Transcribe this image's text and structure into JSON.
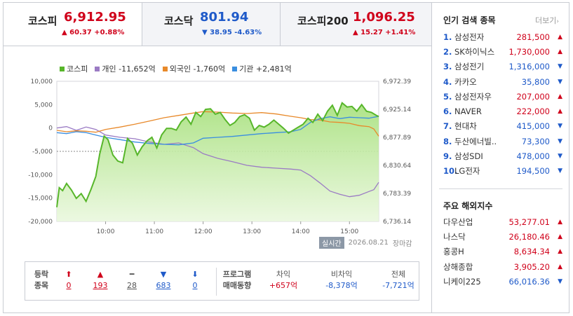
{
  "indices": [
    {
      "name": "코스피",
      "value": "6,912.95",
      "change": "▲ 60.37 +0.88%",
      "dir": "up"
    },
    {
      "name": "코스닥",
      "value": "801.94",
      "change": "▼ 38.95 -4.63%",
      "dir": "dn"
    },
    {
      "name": "코스피200",
      "value": "1,096.25",
      "change": "▲ 15.27 +1.41%",
      "dir": "up"
    }
  ],
  "legend": {
    "kospi": "코스피",
    "individual": "개인 -11,652억",
    "foreign": "외국인 -1,760억",
    "institution": "기관 +2,481억"
  },
  "colors": {
    "up": "#d0021b",
    "down": "#1f5ac9",
    "kospi": "#57b62a",
    "individual": "#9b7bc4",
    "foreign": "#e8892a",
    "institution": "#3a8ee0"
  },
  "chart_data": {
    "type": "line",
    "x_ticks": [
      "10:00",
      "11:00",
      "12:00",
      "13:00",
      "14:00",
      "15:00"
    ],
    "y_left_ticks": [
      "10,000",
      "5,000",
      "0",
      "-5,000",
      "-10,000",
      "-15,000",
      "-20,000"
    ],
    "y_left_range": [
      -20000,
      10000
    ],
    "y_right_ticks": [
      "6,972.39",
      "6,925.14",
      "6,877.89",
      "6,830.64",
      "6,783.39",
      "6,736.14"
    ],
    "y_right_range": [
      6736.14,
      6972.39
    ],
    "reference_line": "-5,000 dashed (previous close)",
    "x_range": [
      9.0,
      15.6
    ],
    "series": [
      {
        "name": "코스피",
        "axis": "right",
        "x": [
          9.0,
          9.05,
          9.12,
          9.2,
          9.3,
          9.4,
          9.5,
          9.6,
          9.7,
          9.8,
          9.88,
          9.97,
          10.05,
          10.15,
          10.25,
          10.35,
          10.45,
          10.55,
          10.65,
          10.75,
          10.85,
          10.95,
          11.05,
          11.15,
          11.25,
          11.35,
          11.45,
          11.55,
          11.65,
          11.75,
          11.85,
          11.95,
          12.05,
          12.15,
          12.25,
          12.35,
          12.45,
          12.55,
          12.65,
          12.75,
          12.85,
          12.95,
          13.05,
          13.15,
          13.25,
          13.35,
          13.45,
          13.55,
          13.65,
          13.75,
          13.85,
          13.95,
          14.05,
          14.15,
          14.25,
          14.35,
          14.45,
          14.55,
          14.65,
          14.75,
          14.85,
          14.95,
          15.05,
          15.15,
          15.25,
          15.35,
          15.45,
          15.55,
          15.6
        ],
        "y": [
          6760,
          6793,
          6788,
          6800,
          6789,
          6775,
          6783,
          6770,
          6790,
          6812,
          6850,
          6880,
          6874,
          6848,
          6838,
          6835,
          6876,
          6868,
          6848,
          6862,
          6872,
          6878,
          6860,
          6882,
          6893,
          6893,
          6890,
          6904,
          6912,
          6900,
          6920,
          6913,
          6925,
          6926,
          6917,
          6920,
          6908,
          6898,
          6903,
          6913,
          6916,
          6910,
          6890,
          6898,
          6895,
          6900,
          6907,
          6900,
          6893,
          6885,
          6890,
          6895,
          6900,
          6910,
          6903,
          6917,
          6906,
          6922,
          6932,
          6915,
          6936,
          6929,
          6930,
          6922,
          6933,
          6922,
          6920,
          6915,
          6912.95
        ]
      },
      {
        "name": "개인 -11,652억",
        "axis": "left",
        "x": [
          9.0,
          9.2,
          9.4,
          9.6,
          9.8,
          10.0,
          10.3,
          10.6,
          10.9,
          11.2,
          11.5,
          11.8,
          12.0,
          12.3,
          12.6,
          12.9,
          13.2,
          13.5,
          13.8,
          14.0,
          14.2,
          14.4,
          14.6,
          14.8,
          15.0,
          15.2,
          15.4,
          15.5,
          15.6
        ],
        "y": [
          0,
          300,
          -500,
          200,
          -300,
          -1500,
          -2000,
          -2300,
          -3000,
          -3500,
          -3200,
          -4200,
          -5500,
          -6500,
          -7200,
          -8000,
          -8400,
          -8600,
          -8800,
          -9000,
          -10200,
          -11800,
          -13500,
          -14200,
          -14700,
          -14400,
          -13600,
          -13200,
          -11652
        ]
      },
      {
        "name": "외국인 -1,760억",
        "axis": "left",
        "x": [
          9.0,
          9.2,
          9.4,
          9.6,
          9.8,
          10.0,
          10.3,
          10.6,
          10.9,
          11.2,
          11.5,
          11.8,
          12.0,
          12.3,
          12.6,
          12.9,
          13.2,
          13.5,
          13.8,
          14.0,
          14.2,
          14.4,
          14.6,
          14.8,
          15.0,
          15.2,
          15.4,
          15.5,
          15.6
        ],
        "y": [
          -500,
          -800,
          -600,
          -700,
          -900,
          -300,
          200,
          800,
          1500,
          2200,
          2700,
          3200,
          3500,
          3400,
          3200,
          3100,
          3300,
          3000,
          2500,
          2200,
          1800,
          1700,
          1300,
          1200,
          1000,
          500,
          300,
          -200,
          -1760
        ]
      },
      {
        "name": "기관 +2,481억",
        "axis": "left",
        "x": [
          9.0,
          9.2,
          9.4,
          9.6,
          9.8,
          10.0,
          10.3,
          10.6,
          10.9,
          11.2,
          11.5,
          11.8,
          12.0,
          12.3,
          12.6,
          12.9,
          13.2,
          13.5,
          13.8,
          14.0,
          14.2,
          14.4,
          14.6,
          14.8,
          15.0,
          15.2,
          15.4,
          15.5,
          15.6
        ],
        "y": [
          -1000,
          -1200,
          -800,
          -1000,
          -1500,
          -2000,
          -2500,
          -3000,
          -3300,
          -3500,
          -3600,
          -3200,
          -2200,
          -2000,
          -1800,
          -1500,
          -1200,
          -1000,
          -800,
          -300,
          1200,
          2000,
          2400,
          2000,
          2300,
          2200,
          2100,
          2300,
          2481
        ]
      }
    ]
  },
  "timestamp": "2026.08.21",
  "realtime_label": "실시간",
  "session_label": "장마감",
  "breadth": {
    "label_top": "등락",
    "label_bottom": "종목",
    "items": [
      {
        "sym": "⬆",
        "val": "0",
        "dir": "up"
      },
      {
        "sym": "▲",
        "val": "193",
        "dir": "up"
      },
      {
        "sym": "━",
        "val": "28",
        "dir": "flat"
      },
      {
        "sym": "▼",
        "val": "683",
        "dir": "dn"
      },
      {
        "sym": "⬇",
        "val": "0",
        "dir": "dn"
      }
    ]
  },
  "program": {
    "label_top": "프로그램",
    "label_bottom": "매매동향",
    "items": [
      {
        "label": "차익",
        "value": "+657억",
        "dir": "up"
      },
      {
        "label": "비차익",
        "value": "-8,378억",
        "dir": "dn"
      },
      {
        "label": "전체",
        "value": "-7,721억",
        "dir": "dn"
      }
    ]
  },
  "popular": {
    "title": "인기 검색 종목",
    "more": "더보기",
    "items": [
      {
        "rank": "1.",
        "name": "삼성전자",
        "price": "281,500",
        "dir": "up"
      },
      {
        "rank": "2.",
        "name": "SK하이닉스",
        "price": "1,730,000",
        "dir": "up"
      },
      {
        "rank": "3.",
        "name": "삼성전기",
        "price": "1,316,000",
        "dir": "dn"
      },
      {
        "rank": "4.",
        "name": "카카오",
        "price": "35,800",
        "dir": "dn"
      },
      {
        "rank": "5.",
        "name": "삼성전자우",
        "price": "207,000",
        "dir": "up"
      },
      {
        "rank": "6.",
        "name": "NAVER",
        "price": "222,000",
        "dir": "up"
      },
      {
        "rank": "7.",
        "name": "현대차",
        "price": "415,000",
        "dir": "dn"
      },
      {
        "rank": "8.",
        "name": "두산에너빌..",
        "price": "73,300",
        "dir": "dn"
      },
      {
        "rank": "9.",
        "name": "삼성SDI",
        "price": "478,000",
        "dir": "dn"
      },
      {
        "rank": "10.",
        "name": "LG전자",
        "price": "194,500",
        "dir": "dn"
      }
    ]
  },
  "global": {
    "title": "주요 해외지수",
    "items": [
      {
        "name": "다우산업",
        "value": "53,277.01",
        "dir": "up"
      },
      {
        "name": "나스닥",
        "value": "26,180.46",
        "dir": "up"
      },
      {
        "name": "홍콩H",
        "value": "8,634.34",
        "dir": "up"
      },
      {
        "name": "상해종합",
        "value": "3,905.20",
        "dir": "up"
      },
      {
        "name": "니케이225",
        "value": "66,016.36",
        "dir": "dn"
      }
    ]
  }
}
